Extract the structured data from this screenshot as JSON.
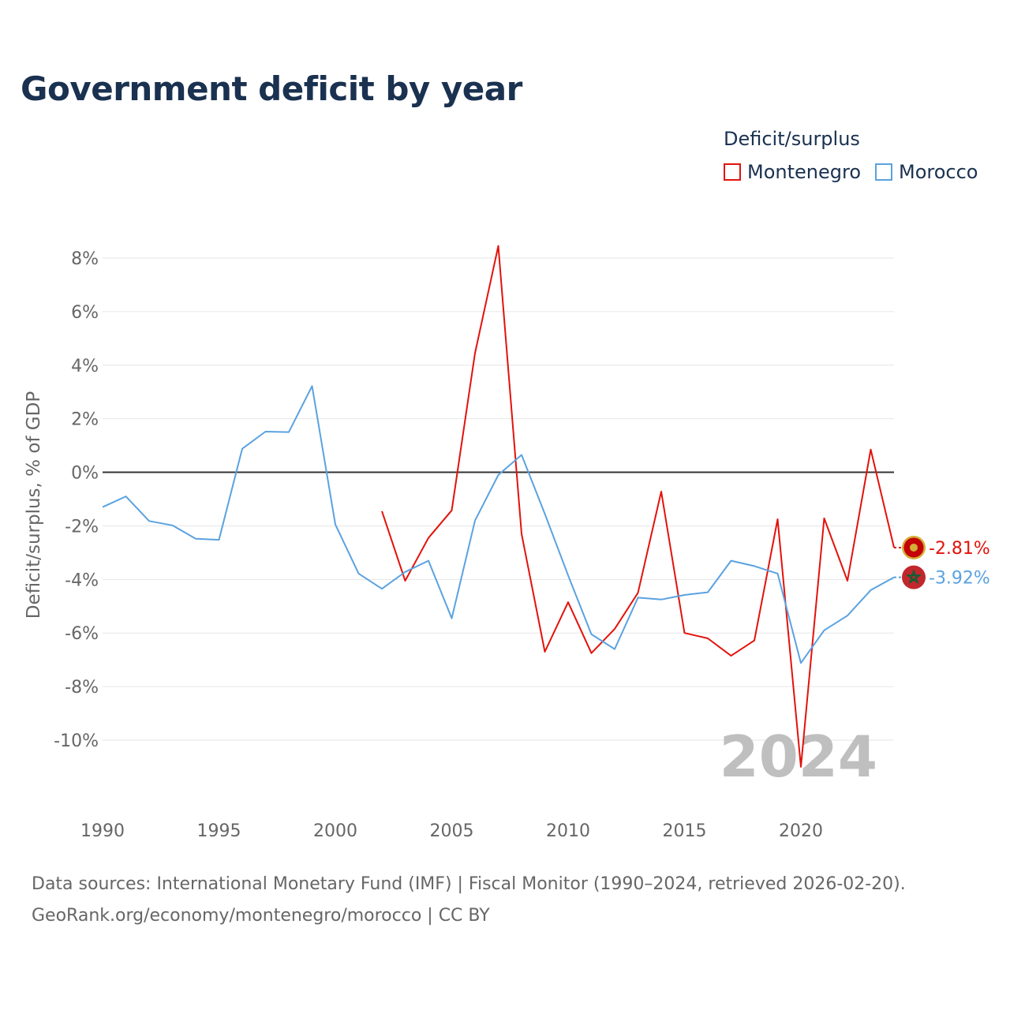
{
  "title": "Government deficit by year",
  "legend": {
    "title": "Deficit/surplus",
    "items": [
      {
        "name": "Montenegro",
        "color": "#e3120b"
      },
      {
        "name": "Morocco",
        "color": "#5aa2e0"
      }
    ]
  },
  "footer": {
    "line1": "Data sources: International Monetary Fund (IMF) | Fiscal Monitor (1990–2024, retrieved 2026-02-20).",
    "line2": "GeoRank.org/economy/montenegro/morocco | CC BY"
  },
  "chart_data": {
    "type": "line",
    "title": "Government deficit by year",
    "ylabel": "Deficit/surplus, % of GDP",
    "xlabel": "",
    "xlim": [
      1990,
      2024
    ],
    "ylim": [
      -12,
      9
    ],
    "x_ticks": [
      1990,
      1995,
      2000,
      2005,
      2010,
      2015,
      2020
    ],
    "x_tick_labels": [
      "1990",
      "1995",
      "2000",
      "2005",
      "2010",
      "2015",
      "2020"
    ],
    "y_ticks": [
      8,
      6,
      4,
      2,
      0,
      -2,
      -4,
      -6,
      -8,
      -10
    ],
    "y_tick_labels": [
      "8%",
      "6%",
      "4%",
      "2%",
      "0%",
      "-2%",
      "-4%",
      "-6%",
      "-8%",
      "-10%"
    ],
    "watermark_year": "2024",
    "series": [
      {
        "name": "Montenegro",
        "color": "#e3120b",
        "x": [
          2002,
          2003,
          2004,
          2005,
          2006,
          2007,
          2008,
          2009,
          2010,
          2011,
          2012,
          2013,
          2014,
          2015,
          2016,
          2017,
          2018,
          2019,
          2020,
          2021,
          2022,
          2023,
          2024
        ],
        "values": [
          -1.45,
          -4.05,
          -2.45,
          -1.42,
          4.45,
          8.45,
          -2.3,
          -6.7,
          -4.85,
          -6.75,
          -5.85,
          -4.5,
          -0.72,
          -6.0,
          -6.2,
          -6.85,
          -6.28,
          -1.75,
          -11.0,
          -1.72,
          -4.05,
          0.85,
          -2.81
        ],
        "end_label": "-2.81%"
      },
      {
        "name": "Morocco",
        "color": "#5aa2e0",
        "x": [
          1990,
          1991,
          1992,
          1993,
          1994,
          1995,
          1996,
          1997,
          1998,
          1999,
          2000,
          2001,
          2002,
          2003,
          2004,
          2005,
          2006,
          2007,
          2008,
          2009,
          2010,
          2011,
          2012,
          2013,
          2014,
          2015,
          2016,
          2017,
          2018,
          2019,
          2020,
          2021,
          2022,
          2023,
          2024
        ],
        "values": [
          -1.3,
          -0.9,
          -1.82,
          -1.98,
          -2.48,
          -2.52,
          0.88,
          1.52,
          1.5,
          3.22,
          -1.95,
          -3.78,
          -4.35,
          -3.72,
          -3.3,
          -5.45,
          -1.8,
          -0.1,
          0.65,
          -1.55,
          -3.85,
          -6.05,
          -6.6,
          -4.68,
          -4.75,
          -4.58,
          -4.48,
          -3.3,
          -3.5,
          -3.78,
          -7.12,
          -5.9,
          -5.35,
          -4.4,
          -3.92
        ],
        "end_label": "-3.92%"
      }
    ]
  }
}
